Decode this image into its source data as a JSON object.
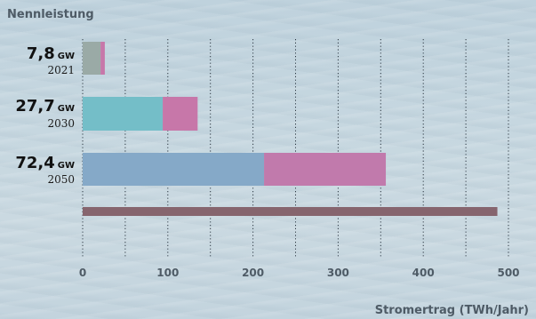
{
  "chart_data": {
    "type": "bar",
    "orientation": "horizontal",
    "stacked": true,
    "title": "Nennleistung",
    "xlabel": "Stromertrag (TWh/Jahr)",
    "xlim": [
      0,
      500
    ],
    "xticks": [
      0,
      100,
      200,
      300,
      400,
      500
    ],
    "grid": "vertical dotted",
    "rows": [
      {
        "capacity": "7,8",
        "unit": "GW",
        "year": "2021",
        "segments": [
          21,
          5
        ],
        "colors": [
          "#9aaaa6",
          "#c777a9"
        ]
      },
      {
        "capacity": "27,7",
        "unit": "GW",
        "year": "2030",
        "segments": [
          94,
          41
        ],
        "colors": [
          "#74bec8",
          "#c777a9"
        ]
      },
      {
        "capacity": "72,4",
        "unit": "GW",
        "year": "2050",
        "segments": [
          213,
          143
        ],
        "colors": [
          "#85a9c8",
          "#c17aac"
        ]
      },
      {
        "capacity": "",
        "unit": "",
        "year": "",
        "segments": [
          487
        ],
        "colors": [
          "#86656e"
        ]
      }
    ]
  }
}
